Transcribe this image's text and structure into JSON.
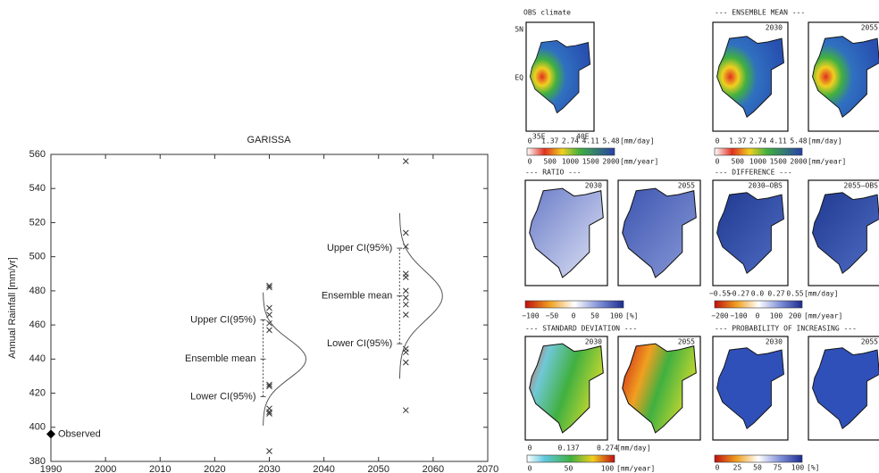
{
  "chart_data": {
    "type": "scatter",
    "title": "GARISSA",
    "y_label": "Annual Rainfall [mm/yr]",
    "xlim": [
      1990,
      2070
    ],
    "xticks": [
      1990,
      2000,
      2010,
      2020,
      2030,
      2040,
      2050,
      2060,
      2070
    ],
    "ylim": [
      380,
      560
    ],
    "yticks": [
      380,
      400,
      420,
      440,
      460,
      480,
      500,
      520,
      540,
      560
    ],
    "observed": {
      "name": "Observed",
      "x": 1990,
      "y": 396
    },
    "ensembles": [
      {
        "x": 2030,
        "members": [
          483,
          482,
          470,
          466,
          461,
          457,
          425,
          424,
          411,
          409,
          408,
          386
        ],
        "upper_ci": 463,
        "mean": 440,
        "lower_ci": 418,
        "labels": {
          "upper": "Upper CI(95%)",
          "mean": "Ensemble mean",
          "lower": "Lower CI(95%)"
        }
      },
      {
        "x": 2055,
        "members": [
          556,
          514,
          506,
          490,
          488,
          480,
          476,
          472,
          466,
          446,
          444,
          438,
          410
        ],
        "upper_ci": 505,
        "mean": 477,
        "lower_ci": 449,
        "labels": {
          "upper": "Upper CI(95%)",
          "mean": "Ensemble mean",
          "lower": "Lower CI(95%)"
        }
      }
    ]
  },
  "maps": {
    "obs": {
      "title": "OBS climate",
      "lat": [
        "5N",
        "EQ"
      ],
      "lon": [
        "35E",
        "40E"
      ]
    },
    "headers": [
      "--- ENSEMBLE MEAN ---",
      "--- RATIO ---",
      "--- DIFFERENCE ---",
      "--- STANDARD DEVIATION ---",
      "--- PROBABILITY OF INCREASING ---"
    ],
    "panel_labels": [
      "2030",
      "2055",
      "2030–OBS",
      "2055–OBS"
    ],
    "colorbars": {
      "rain_day": [
        "0",
        "1.37",
        "2.74",
        "4.11",
        "5.48",
        "[mm/day]"
      ],
      "rain_year": [
        "0",
        "500",
        "1000",
        "1500",
        "2000",
        "[mm/year]"
      ],
      "ratio": [
        "−100",
        "−50",
        "0",
        "50",
        "100",
        "[%]"
      ],
      "diff_day": [
        "−0.55",
        "−0.27",
        "0.0",
        "0.27",
        "0.55",
        "[mm/day]"
      ],
      "diff_year": [
        "−200",
        "−100",
        "0",
        "100",
        "200",
        "[mm/year]"
      ],
      "sd_day": [
        "0",
        "0.137",
        "0.274",
        "[mm/day]"
      ],
      "sd_year": [
        "0",
        "50",
        "100",
        "[mm/year]"
      ],
      "prob": [
        "0",
        "25",
        "50",
        "75",
        "100",
        "[%]"
      ]
    }
  }
}
